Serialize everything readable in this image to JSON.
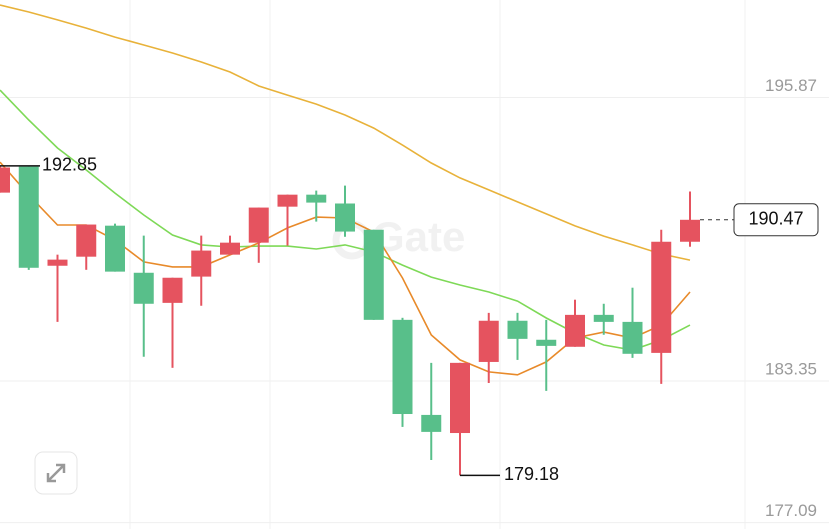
{
  "chart_data": {
    "type": "candlestick",
    "watermark": "Gate",
    "open": [
      191.67,
      192.82,
      188.44,
      188.84,
      190.21,
      188.13,
      186.8,
      187.96,
      188.93,
      189.46,
      191.05,
      191.58,
      191.19,
      190.03,
      186.05,
      181.85,
      181.05,
      184.19,
      186.01,
      185.17,
      184.86,
      186.27,
      185.96,
      184.59,
      189.5
    ],
    "high": [
      192.85,
      192.82,
      188.93,
      190.26,
      190.3,
      189.77,
      187.91,
      189.77,
      189.77,
      191.01,
      191.58,
      191.76,
      191.98,
      190.03,
      186.14,
      184.15,
      184.15,
      186.36,
      186.36,
      186.05,
      186.94,
      186.76,
      187.47,
      190.03,
      191.72
    ],
    "low": [
      191.67,
      188.26,
      185.96,
      188.26,
      188.18,
      184.42,
      183.93,
      186.67,
      188.93,
      188.57,
      189.33,
      190.39,
      189.72,
      186.05,
      181.32,
      179.86,
      179.18,
      183.26,
      184.28,
      182.91,
      184.86,
      185.39,
      184.37,
      183.22,
      189.28
    ],
    "close": [
      192.78,
      188.35,
      188.71,
      190.26,
      188.18,
      186.76,
      187.91,
      189.11,
      189.46,
      191.01,
      191.58,
      191.23,
      189.95,
      186.05,
      181.89,
      181.1,
      184.15,
      186.01,
      185.21,
      184.9,
      186.27,
      185.96,
      184.55,
      189.5,
      190.47
    ],
    "up_color": "#e5535f",
    "down_color": "#58bf8a",
    "lines": [
      {
        "color": "#e8b23a",
        "values": [
          199.96,
          199.65,
          199.3,
          198.94,
          198.54,
          198.19,
          197.84,
          197.44,
          197.0,
          196.38,
          195.98,
          195.58,
          195.1,
          194.52,
          193.77,
          192.98,
          192.32,
          191.79,
          191.26,
          190.73,
          190.2,
          189.75,
          189.36,
          188.96,
          188.69
        ]
      },
      {
        "color": "#7ed957",
        "values": [
          196.2,
          194.88,
          193.64,
          192.67,
          191.65,
          190.68,
          189.8,
          189.36,
          189.27,
          189.31,
          189.31,
          189.18,
          189.36,
          189.05,
          188.47,
          187.94,
          187.59,
          187.28,
          186.88,
          186.13,
          185.47,
          184.94,
          184.72,
          185.16,
          185.82
        ]
      },
      {
        "color": "#e88a2a",
        "values": [
          193.02,
          191.57,
          190.24,
          190.24,
          189.58,
          188.61,
          188.39,
          188.39,
          188.92,
          189.45,
          190.11,
          190.59,
          190.55,
          189.93,
          187.9,
          185.38,
          184.28,
          183.75,
          183.62,
          184.19,
          185.25,
          185.51,
          185.25,
          185.82,
          187.28
        ]
      }
    ],
    "ylim": [
      176.81,
      200.18
    ],
    "yticks": [
      177.09,
      183.35,
      195.87
    ],
    "grid": true
  }
}
